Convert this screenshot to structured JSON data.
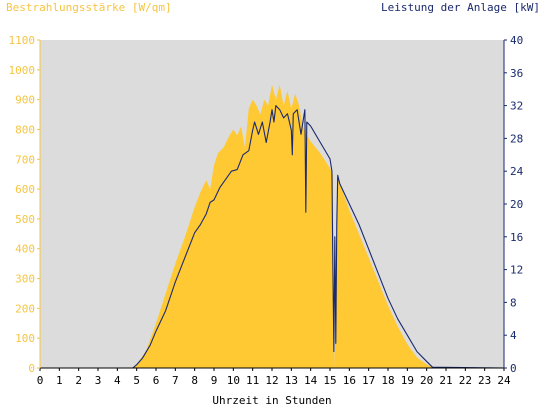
{
  "chart_data": {
    "type": "area",
    "title_left": "Bestrahlungsstärke [W/qm]",
    "title_right": "Leistung der Anlage [kW]",
    "xlabel": "Uhrzeit in Stunden",
    "xlim": [
      0,
      24
    ],
    "x_ticks": [
      "0",
      "1",
      "2",
      "3",
      "4",
      "5",
      "6",
      "7",
      "8",
      "9",
      "10",
      "11",
      "12",
      "13",
      "14",
      "15",
      "16",
      "17",
      "18",
      "19",
      "20",
      "21",
      "22",
      "23",
      "24"
    ],
    "y_left": {
      "lim": [
        0,
        1100
      ],
      "ticks": [
        "0",
        "100",
        "200",
        "300",
        "400",
        "500",
        "600",
        "700",
        "800",
        "900",
        "1000",
        "1100"
      ],
      "color": "#f5c542"
    },
    "y_right": {
      "lim": [
        0,
        40
      ],
      "ticks": [
        "0",
        "4",
        "8",
        "12",
        "16",
        "20",
        "24",
        "28",
        "32",
        "36",
        "40"
      ],
      "color": "#1a2a6e"
    },
    "plot_background": "#dcdcdc",
    "grid": false,
    "series": [
      {
        "name": "Bestrahlungsstärke",
        "axis": "left",
        "style": "area",
        "color": "#ffc933",
        "x": [
          0,
          4.8,
          5.0,
          5.2,
          5.5,
          6.0,
          6.5,
          7.0,
          7.5,
          8.0,
          8.3,
          8.6,
          8.8,
          9.0,
          9.2,
          9.5,
          9.8,
          10.0,
          10.2,
          10.4,
          10.6,
          10.8,
          11.0,
          11.2,
          11.4,
          11.6,
          11.8,
          12.0,
          12.2,
          12.4,
          12.6,
          12.8,
          13.0,
          13.2,
          13.4,
          13.6,
          13.8,
          14.0,
          14.5,
          15.0,
          15.15,
          15.2,
          15.25,
          15.3,
          15.4,
          15.5,
          16.0,
          16.5,
          17.0,
          17.5,
          18.0,
          18.5,
          19.0,
          19.5,
          20.0,
          20.2,
          20.5,
          24
        ],
        "y": [
          0,
          0,
          10,
          30,
          60,
          150,
          250,
          350,
          440,
          540,
          590,
          630,
          600,
          680,
          720,
          740,
          780,
          800,
          780,
          810,
          740,
          870,
          900,
          880,
          850,
          900,
          880,
          950,
          900,
          950,
          880,
          930,
          870,
          920,
          880,
          810,
          780,
          760,
          720,
          670,
          650,
          200,
          0,
          300,
          650,
          620,
          530,
          450,
          370,
          290,
          210,
          140,
          80,
          35,
          12,
          5,
          0,
          0
        ]
      },
      {
        "name": "Leistung der Anlage",
        "axis": "right",
        "style": "line",
        "color": "#1a2a6e",
        "x": [
          0,
          4.8,
          5.0,
          5.3,
          5.7,
          6.0,
          6.5,
          7.0,
          7.5,
          8.0,
          8.3,
          8.6,
          8.8,
          9.0,
          9.3,
          9.6,
          9.9,
          10.2,
          10.5,
          10.8,
          11.0,
          11.1,
          11.3,
          11.5,
          11.7,
          11.9,
          12.0,
          12.1,
          12.2,
          12.4,
          12.6,
          12.8,
          13.0,
          13.05,
          13.1,
          13.3,
          13.5,
          13.7,
          13.75,
          13.8,
          14.0,
          14.5,
          15.0,
          15.1,
          15.15,
          15.2,
          15.25,
          15.3,
          15.35,
          15.4,
          15.45,
          15.5,
          16.0,
          16.5,
          17.0,
          17.5,
          18.0,
          18.5,
          19.0,
          19.5,
          20.0,
          20.3,
          24
        ],
        "y": [
          0,
          0,
          0.4,
          1.2,
          2.8,
          4.5,
          7,
          10.5,
          13.5,
          16.5,
          17.5,
          18.8,
          20.2,
          20.5,
          22,
          23,
          24,
          24.2,
          26,
          26.5,
          29,
          30,
          28.5,
          30,
          27.5,
          30,
          31.5,
          30,
          32,
          31.5,
          30.5,
          31,
          29,
          26,
          31,
          31.5,
          28.5,
          31.5,
          19,
          30,
          29.5,
          27.5,
          25.5,
          24,
          12,
          2,
          16,
          3,
          17.5,
          23.5,
          23,
          22.5,
          20,
          17.5,
          14.5,
          11.5,
          8.5,
          6,
          4,
          2,
          0.8,
          0.1,
          0
        ]
      }
    ]
  }
}
